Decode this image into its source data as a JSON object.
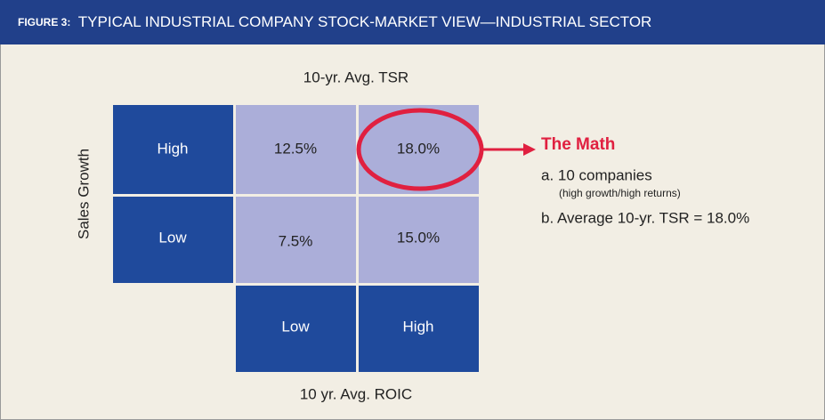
{
  "header": {
    "figure_label": "FIGURE 3:",
    "title": "TYPICAL INDUSTRIAL COMPANY STOCK-MARKET VIEW—INDUSTRIAL SECTOR"
  },
  "matrix": {
    "top_label": "10-yr. Avg. TSR",
    "bottom_label": "10 yr. Avg. ROIC",
    "side_label": "Sales Growth",
    "row_labels": [
      "High",
      "Low"
    ],
    "column_labels": [
      "Low",
      "High"
    ],
    "cells": [
      [
        "12.5%",
        "18.0%"
      ],
      [
        "7.5%",
        "15.0%"
      ]
    ]
  },
  "callout": {
    "title": "The Math",
    "items": [
      {
        "text": "a. 10 companies",
        "note": "(high growth/high returns)"
      },
      {
        "text": "b. Average 10-yr. TSR = 18.0%"
      }
    ]
  }
}
